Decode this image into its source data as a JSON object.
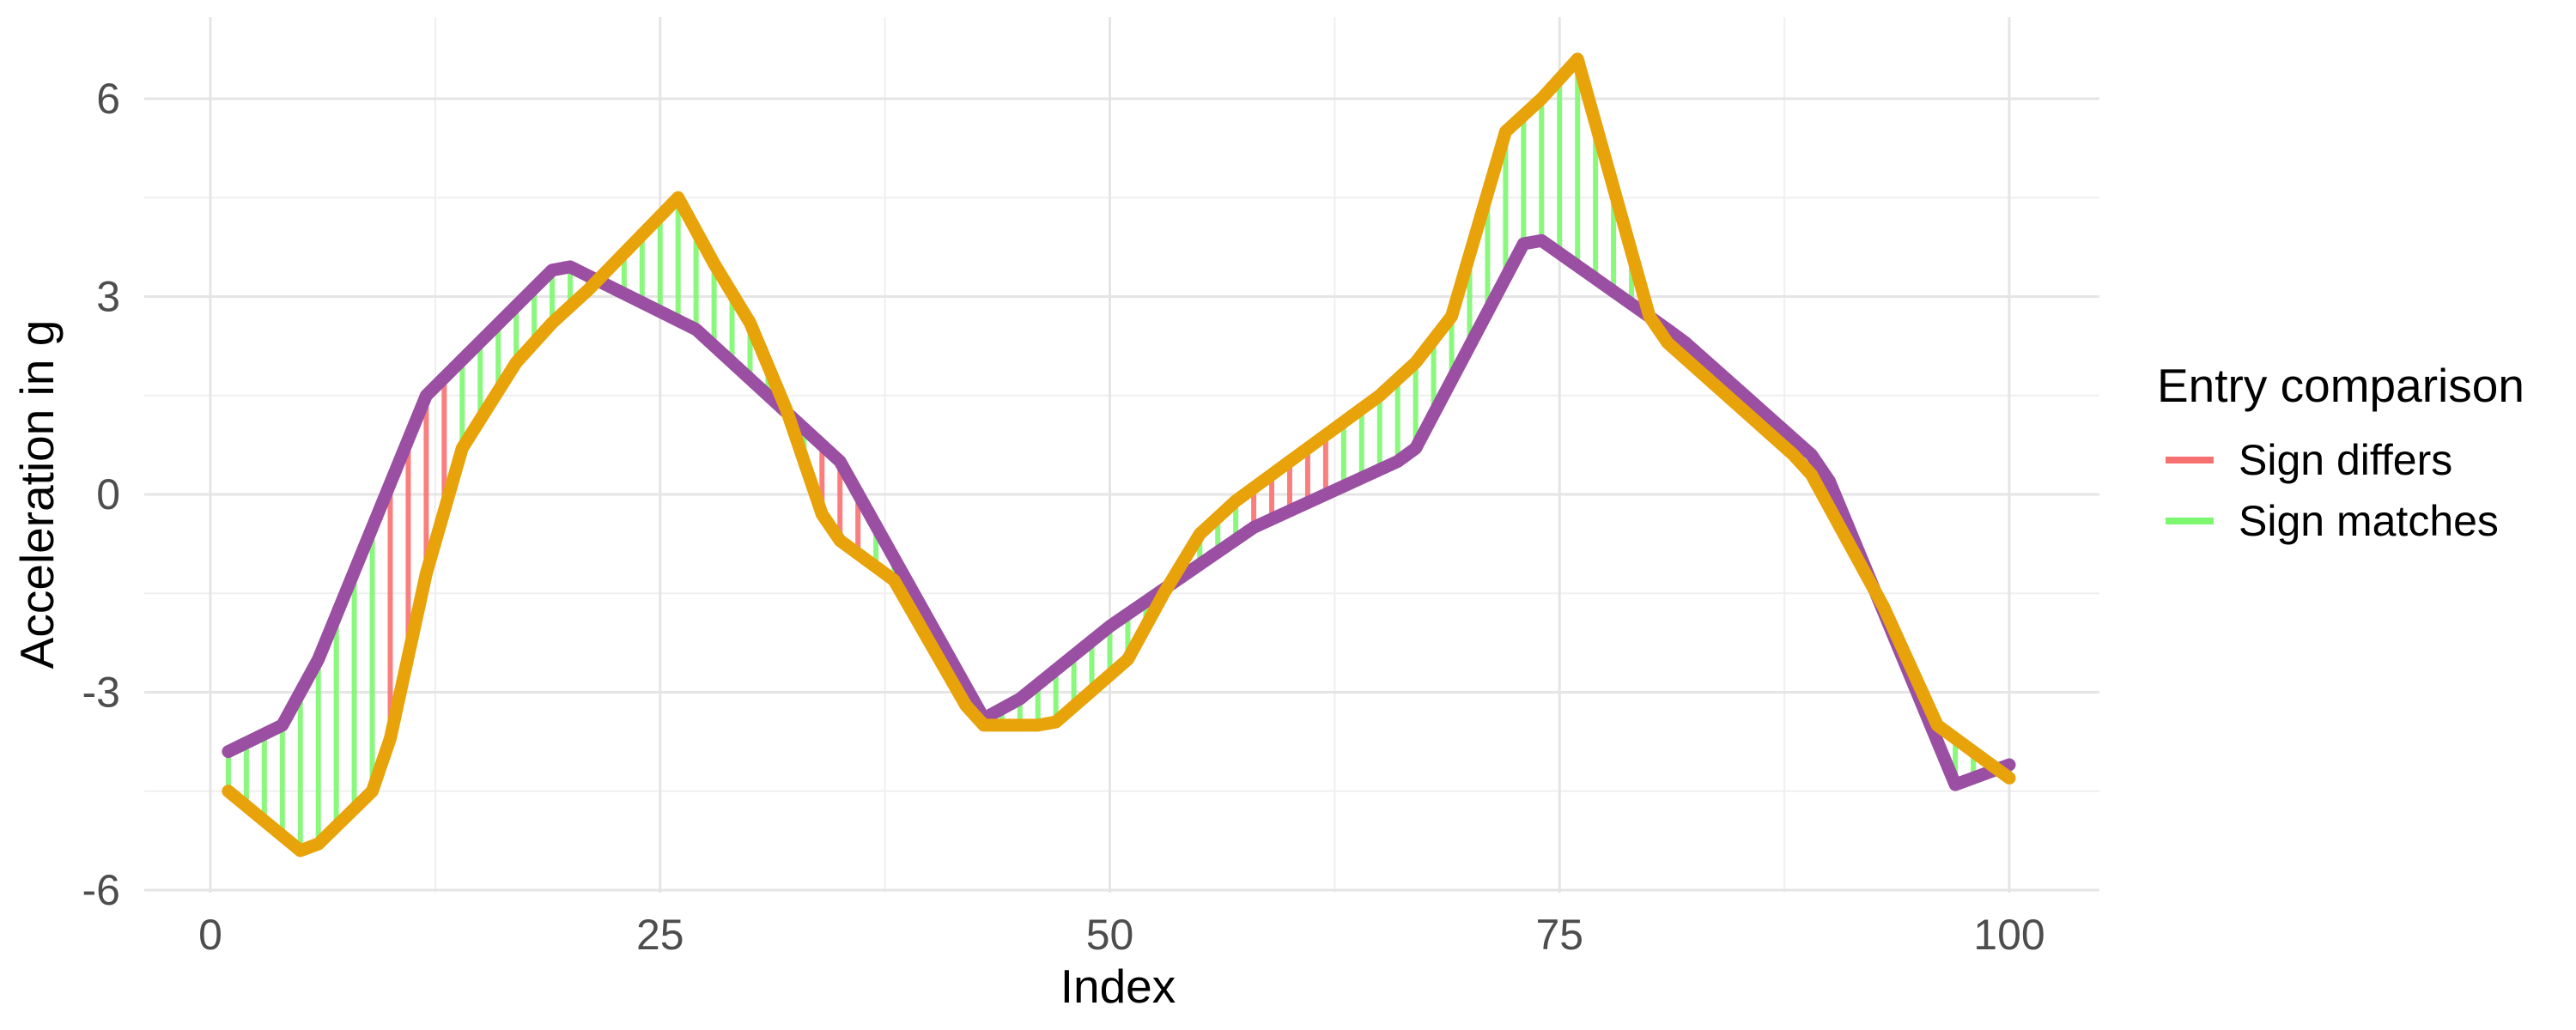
{
  "chart_data": {
    "type": "line",
    "xlabel": "Index",
    "ylabel": "Acceleration in g",
    "xlim": [
      -2,
      105
    ],
    "ylim": [
      -6.0,
      7.2
    ],
    "x_ticks": [
      0,
      25,
      50,
      75,
      100
    ],
    "y_ticks": [
      -6,
      -3,
      0,
      3,
      6
    ],
    "x_tick_labels": [
      "0",
      "25",
      "50",
      "75",
      "100"
    ],
    "y_tick_labels": [
      "-6",
      "-3",
      "0",
      "3",
      "6"
    ],
    "grid": true,
    "legend": {
      "title": "Entry comparison",
      "position": "right",
      "entries": [
        {
          "label": "Sign differs",
          "color": "#f87171"
        },
        {
          "label": "Sign matches",
          "color": "#7cf76f"
        }
      ]
    },
    "series": [
      {
        "color": "#9b4fa3",
        "points": [
          [
            1,
            -3.9
          ],
          [
            4,
            -3.5
          ],
          [
            6,
            -2.5
          ],
          [
            12,
            1.5
          ],
          [
            19,
            3.4
          ],
          [
            20,
            3.45
          ],
          [
            27,
            2.5
          ],
          [
            35,
            0.5
          ],
          [
            43,
            -3.4
          ],
          [
            45,
            -3.1
          ],
          [
            50,
            -2.0
          ],
          [
            58,
            -0.5
          ],
          [
            66,
            0.5
          ],
          [
            67,
            0.7
          ],
          [
            73,
            3.8
          ],
          [
            74,
            3.85
          ],
          [
            81,
            2.5
          ],
          [
            82,
            2.3
          ],
          [
            89,
            0.6
          ],
          [
            90,
            0.2
          ],
          [
            97,
            -4.4
          ],
          [
            100,
            -4.1
          ]
        ]
      },
      {
        "color": "#e8a30a",
        "points": [
          [
            1,
            -4.5
          ],
          [
            5,
            -5.4
          ],
          [
            6,
            -5.3
          ],
          [
            9,
            -4.5
          ],
          [
            10,
            -3.7
          ],
          [
            12,
            -1.2
          ],
          [
            14,
            0.7
          ],
          [
            17,
            2.0
          ],
          [
            19,
            2.6
          ],
          [
            21,
            3.1
          ],
          [
            26,
            4.5
          ],
          [
            28,
            3.5
          ],
          [
            30,
            2.6
          ],
          [
            32,
            1.3
          ],
          [
            34,
            -0.3
          ],
          [
            35,
            -0.7
          ],
          [
            38,
            -1.3
          ],
          [
            42,
            -3.2
          ],
          [
            43,
            -3.5
          ],
          [
            46,
            -3.5
          ],
          [
            47,
            -3.45
          ],
          [
            51,
            -2.5
          ],
          [
            53,
            -1.5
          ],
          [
            55,
            -0.6
          ],
          [
            57,
            -0.1
          ],
          [
            60,
            0.5
          ],
          [
            65,
            1.5
          ],
          [
            67,
            2.0
          ],
          [
            69,
            2.7
          ],
          [
            72,
            5.5
          ],
          [
            74,
            6.0
          ],
          [
            76,
            6.6
          ],
          [
            80,
            2.7
          ],
          [
            81,
            2.3
          ],
          [
            88,
            0.6
          ],
          [
            89,
            0.3
          ],
          [
            93,
            -1.7
          ],
          [
            96,
            -3.5
          ],
          [
            100,
            -4.3
          ]
        ]
      }
    ],
    "comparison_segments": {
      "x_range": [
        1,
        100
      ],
      "differs_color": "#f87171",
      "matches_color": "#7cf76f"
    }
  }
}
